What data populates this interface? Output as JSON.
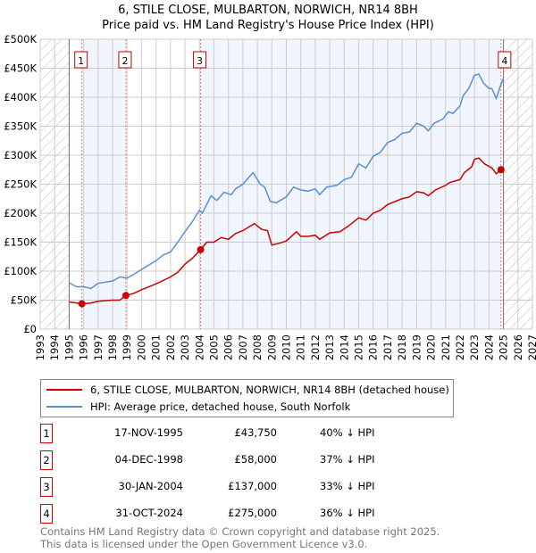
{
  "chart_data": {
    "type": "line",
    "title": "6, STILE CLOSE, MULBARTON, NORWICH, NR14 8BH",
    "subtitle": "Price paid vs. HM Land Registry's House Price Index (HPI)",
    "xlim": [
      1993,
      2027
    ],
    "ylim": [
      0,
      500000
    ],
    "x_ticks": [
      "1993",
      "1994",
      "1995",
      "1996",
      "1997",
      "1998",
      "1999",
      "2000",
      "2001",
      "2002",
      "2003",
      "2004",
      "2005",
      "2006",
      "2007",
      "2008",
      "2009",
      "2010",
      "2011",
      "2012",
      "2013",
      "2014",
      "2015",
      "2016",
      "2017",
      "2018",
      "2019",
      "2020",
      "2021",
      "2022",
      "2023",
      "2024",
      "2025",
      "2026",
      "2027"
    ],
    "y_ticks": [
      {
        "v": 0,
        "l": "£0"
      },
      {
        "v": 50000,
        "l": "£50K"
      },
      {
        "v": 100000,
        "l": "£100K"
      },
      {
        "v": 150000,
        "l": "£150K"
      },
      {
        "v": 200000,
        "l": "£200K"
      },
      {
        "v": 250000,
        "l": "£250K"
      },
      {
        "v": 300000,
        "l": "£300K"
      },
      {
        "v": 350000,
        "l": "£350K"
      },
      {
        "v": 400000,
        "l": "£400K"
      },
      {
        "v": 450000,
        "l": "£450K"
      },
      {
        "v": 500000,
        "l": "£500K"
      }
    ],
    "grid": true,
    "data_range": [
      1995,
      2025
    ],
    "series": [
      {
        "name": "6, STILE CLOSE, MULBARTON, NORWICH, NR14 8BH (detached house)",
        "color": "#cc0000",
        "points": [
          [
            1995,
            47
          ],
          [
            1995.9,
            43.75
          ],
          [
            1996.5,
            45
          ],
          [
            1997,
            48
          ],
          [
            1998,
            50
          ],
          [
            1998.5,
            50
          ],
          [
            1998.92,
            58
          ],
          [
            1999.5,
            62
          ],
          [
            2000,
            68
          ],
          [
            2001,
            78
          ],
          [
            2002,
            90
          ],
          [
            2002.5,
            98
          ],
          [
            2003,
            112
          ],
          [
            2003.5,
            122
          ],
          [
            2004.08,
            137
          ],
          [
            2004.5,
            150
          ],
          [
            2005,
            150
          ],
          [
            2005.5,
            158
          ],
          [
            2006,
            155
          ],
          [
            2006.5,
            165
          ],
          [
            2007,
            170
          ],
          [
            2007.8,
            182
          ],
          [
            2008.3,
            172
          ],
          [
            2008.7,
            170
          ],
          [
            2009,
            145
          ],
          [
            2009.5,
            148
          ],
          [
            2010,
            152
          ],
          [
            2010.7,
            168
          ],
          [
            2011,
            160
          ],
          [
            2011.5,
            160
          ],
          [
            2012,
            162
          ],
          [
            2012.3,
            155
          ],
          [
            2013,
            166
          ],
          [
            2013.7,
            168
          ],
          [
            2014.3,
            178
          ],
          [
            2015,
            192
          ],
          [
            2015.5,
            188
          ],
          [
            2016,
            200
          ],
          [
            2016.5,
            205
          ],
          [
            2017,
            215
          ],
          [
            2017.5,
            220
          ],
          [
            2018,
            225
          ],
          [
            2018.5,
            228
          ],
          [
            2019,
            237
          ],
          [
            2019.5,
            235
          ],
          [
            2019.8,
            230
          ],
          [
            2020.3,
            240
          ],
          [
            2021,
            248
          ],
          [
            2021.3,
            253
          ],
          [
            2022,
            258
          ],
          [
            2022.3,
            270
          ],
          [
            2022.8,
            280
          ],
          [
            2023,
            293
          ],
          [
            2023.3,
            295
          ],
          [
            2023.7,
            285
          ],
          [
            2024.2,
            278
          ],
          [
            2024.5,
            268
          ],
          [
            2024.83,
            275
          ],
          [
            2025,
            275
          ]
        ]
      },
      {
        "name": "HPI: Average price, detached house, South Norfolk",
        "color": "#5b8fd4",
        "points": [
          [
            1995,
            80
          ],
          [
            1995.5,
            73
          ],
          [
            1996,
            73
          ],
          [
            1996.5,
            70
          ],
          [
            1997,
            79
          ],
          [
            1998,
            83
          ],
          [
            1998.5,
            90
          ],
          [
            1999,
            88
          ],
          [
            1999.5,
            95
          ],
          [
            2000,
            103
          ],
          [
            2001,
            118
          ],
          [
            2001.5,
            128
          ],
          [
            2002,
            133
          ],
          [
            2002.5,
            150
          ],
          [
            2003,
            168
          ],
          [
            2003.5,
            185
          ],
          [
            2004,
            205
          ],
          [
            2004.2,
            200
          ],
          [
            2004.8,
            230
          ],
          [
            2005.2,
            222
          ],
          [
            2005.7,
            236
          ],
          [
            2006.2,
            232
          ],
          [
            2006.5,
            242
          ],
          [
            2007,
            250
          ],
          [
            2007.7,
            270
          ],
          [
            2008.2,
            250
          ],
          [
            2008.5,
            245
          ],
          [
            2008.9,
            220
          ],
          [
            2009.3,
            218
          ],
          [
            2010,
            228
          ],
          [
            2010.5,
            245
          ],
          [
            2011,
            240
          ],
          [
            2011.5,
            238
          ],
          [
            2012,
            242
          ],
          [
            2012.3,
            232
          ],
          [
            2012.8,
            245
          ],
          [
            2013.5,
            248
          ],
          [
            2014,
            258
          ],
          [
            2014.5,
            262
          ],
          [
            2015,
            285
          ],
          [
            2015.5,
            278
          ],
          [
            2016,
            298
          ],
          [
            2016.5,
            305
          ],
          [
            2017,
            322
          ],
          [
            2017.5,
            327
          ],
          [
            2018,
            338
          ],
          [
            2018.5,
            340
          ],
          [
            2019,
            355
          ],
          [
            2019.5,
            350
          ],
          [
            2019.8,
            342
          ],
          [
            2020.2,
            355
          ],
          [
            2020.8,
            362
          ],
          [
            2021.2,
            375
          ],
          [
            2021.5,
            372
          ],
          [
            2022,
            385
          ],
          [
            2022.2,
            402
          ],
          [
            2022.6,
            415
          ],
          [
            2023,
            438
          ],
          [
            2023.3,
            440
          ],
          [
            2023.6,
            425
          ],
          [
            2024,
            415
          ],
          [
            2024.2,
            415
          ],
          [
            2024.5,
            398
          ],
          [
            2024.8,
            420
          ],
          [
            2025,
            433
          ]
        ]
      }
    ],
    "sales": [
      {
        "n": "1",
        "x": 1995.88,
        "price": 43750,
        "date": "17-NOV-1995",
        "price_label": "£43,750",
        "hpi": "40% ↓ HPI"
      },
      {
        "n": "2",
        "x": 1998.92,
        "price": 58000,
        "date": "04-DEC-1998",
        "price_label": "£58,000",
        "hpi": "37% ↓ HPI"
      },
      {
        "n": "3",
        "x": 2004.08,
        "price": 137000,
        "date": "30-JAN-2004",
        "price_label": "£137,000",
        "hpi": "33% ↓ HPI"
      },
      {
        "n": "4",
        "x": 2024.83,
        "price": 275000,
        "date": "31-OCT-2024",
        "price_label": "£275,000",
        "hpi": "36% ↓ HPI"
      }
    ]
  },
  "footer": {
    "line1": "Contains HM Land Registry data © Crown copyright and database right 2025.",
    "line2": "This data is licensed under the Open Government Licence v3.0."
  }
}
